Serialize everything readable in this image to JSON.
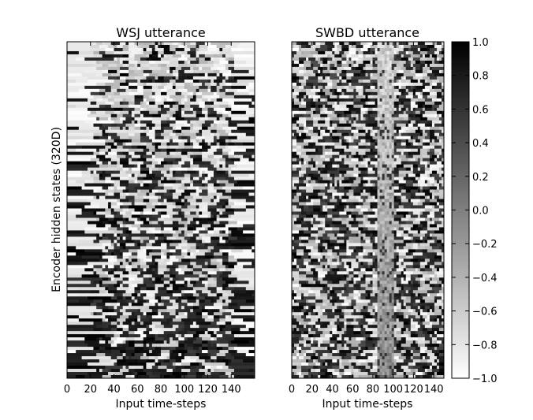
{
  "chart_data": [
    {
      "type": "heatmap",
      "title": "WSJ utterance",
      "xlabel": "Input time-steps",
      "ylabel": "Encoder hidden states (320D)",
      "xlim": [
        0,
        160
      ],
      "ylim": [
        0,
        320
      ],
      "x_ticks": [
        0,
        20,
        40,
        60,
        80,
        100,
        120,
        140
      ],
      "x_tick_labels": [
        "0",
        "20",
        "40",
        "60",
        "80",
        "100",
        "120",
        "140"
      ],
      "n_timesteps": 160,
      "n_hidden": 320,
      "active_span": [
        20,
        140
      ],
      "colormap": "gray_r",
      "value_range": [
        -1.0,
        1.0
      ]
    },
    {
      "type": "heatmap",
      "title": "SWBD utterance",
      "xlabel": "Input time-steps",
      "ylabel": "",
      "xlim": [
        0,
        150
      ],
      "ylim": [
        0,
        320
      ],
      "x_ticks": [
        0,
        20,
        40,
        60,
        80,
        100,
        120,
        140
      ],
      "x_tick_labels": [
        "0",
        "20",
        "40",
        "60",
        "80",
        "100",
        "120",
        "140"
      ],
      "n_timesteps": 150,
      "n_hidden": 320,
      "silence_span": [
        85,
        100
      ],
      "colormap": "gray_r",
      "value_range": [
        -1.0,
        1.0
      ]
    }
  ],
  "colorbar": {
    "ticks": [
      1.0,
      0.8,
      0.6,
      0.4,
      0.2,
      0.0,
      -0.2,
      -0.4,
      -0.6,
      -0.8,
      -1.0
    ],
    "tick_labels": [
      "1.0",
      "0.8",
      "0.6",
      "0.4",
      "0.2",
      "0.0",
      "−0.2",
      "−0.4",
      "−0.6",
      "−0.8",
      "−1.0"
    ],
    "max_color": "#000000",
    "min_color": "#ffffff"
  }
}
